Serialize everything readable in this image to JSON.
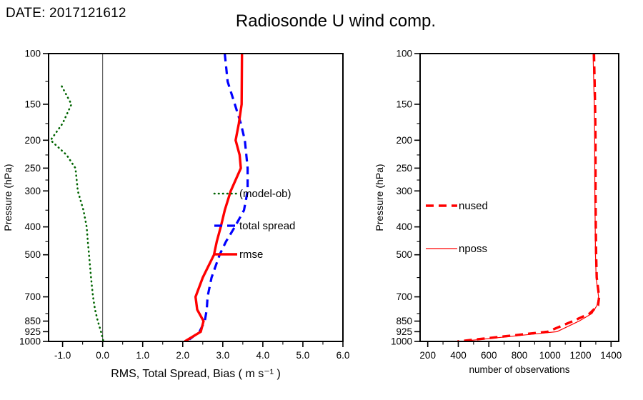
{
  "header": {
    "date_label": "DATE: 2017121612",
    "title": "Radiosonde U wind comp."
  },
  "chart_data": [
    {
      "type": "line",
      "panel": "verification",
      "xlabel": "RMS, Total Spread, Bias ( m s⁻¹ )",
      "ylabel": "Pressure (hPa)",
      "xlim": [
        -1.35,
        6.0
      ],
      "ylim": [
        100,
        1000
      ],
      "yscale": "log",
      "y_inverted": true,
      "grid": false,
      "refline_x": 0.0,
      "xticks": [
        -1.0,
        0.0,
        1.0,
        2.0,
        3.0,
        4.0,
        5.0,
        6.0
      ],
      "xtick_labels": [
        "-1.0",
        "0.0",
        "1.0",
        "2.0",
        "3.0",
        "4.0",
        "5.0",
        "6.0"
      ],
      "xminor": [
        -0.5,
        0.5,
        1.5,
        2.5,
        3.5,
        4.5,
        5.5
      ],
      "yticks": [
        100,
        150,
        200,
        250,
        300,
        400,
        500,
        700,
        850,
        925,
        1000
      ],
      "ytick_labels": [
        "100",
        "150",
        "200",
        "250",
        "300",
        "400",
        "500",
        "700",
        "850",
        "925",
        "1000"
      ],
      "yminor": [
        125,
        175,
        225,
        275,
        350,
        450,
        600,
        800
      ],
      "legend_position": "inside-right",
      "series": [
        {
          "name": "(model-ob)",
          "color": "#006400",
          "style": "dotted",
          "width": 2.6,
          "points": [
            [
              130,
              -1.02
            ],
            [
              150,
              -0.78
            ],
            [
              175,
              -1.0
            ],
            [
              200,
              -1.3
            ],
            [
              225,
              -0.9
            ],
            [
              250,
              -0.68
            ],
            [
              300,
              -0.62
            ],
            [
              350,
              -0.48
            ],
            [
              400,
              -0.4
            ],
            [
              450,
              -0.37
            ],
            [
              500,
              -0.34
            ],
            [
              600,
              -0.29
            ],
            [
              700,
              -0.24
            ],
            [
              775,
              -0.19
            ],
            [
              850,
              -0.12
            ],
            [
              925,
              -0.04
            ],
            [
              1000,
              0.02
            ]
          ]
        },
        {
          "name": "total spread",
          "color": "#0000ff",
          "style": "dashed",
          "width": 3.2,
          "points": [
            [
              100,
              3.05
            ],
            [
              125,
              3.12
            ],
            [
              150,
              3.3
            ],
            [
              175,
              3.45
            ],
            [
              200,
              3.55
            ],
            [
              250,
              3.62
            ],
            [
              300,
              3.62
            ],
            [
              350,
              3.53
            ],
            [
              400,
              3.3
            ],
            [
              450,
              3.08
            ],
            [
              500,
              2.92
            ],
            [
              600,
              2.72
            ],
            [
              700,
              2.62
            ],
            [
              775,
              2.6
            ],
            [
              850,
              2.55
            ],
            [
              925,
              2.42
            ],
            [
              1000,
              2.1
            ]
          ]
        },
        {
          "name": "rmse",
          "color": "#ff0000",
          "style": "solid",
          "width": 3.4,
          "points": [
            [
              100,
              3.48
            ],
            [
              150,
              3.47
            ],
            [
              175,
              3.4
            ],
            [
              200,
              3.32
            ],
            [
              225,
              3.42
            ],
            [
              250,
              3.45
            ],
            [
              300,
              3.2
            ],
            [
              350,
              3.05
            ],
            [
              400,
              2.95
            ],
            [
              450,
              2.85
            ],
            [
              500,
              2.78
            ],
            [
              600,
              2.5
            ],
            [
              700,
              2.32
            ],
            [
              775,
              2.36
            ],
            [
              850,
              2.52
            ],
            [
              925,
              2.45
            ],
            [
              1000,
              2.05
            ]
          ]
        }
      ]
    },
    {
      "type": "line",
      "panel": "observations",
      "xlabel": "number of observations",
      "ylabel": "Pressure (hPa)",
      "xlim": [
        150,
        1450
      ],
      "ylim": [
        100,
        1000
      ],
      "yscale": "log",
      "y_inverted": true,
      "grid": false,
      "xticks": [
        200,
        400,
        600,
        800,
        1000,
        1200,
        1400
      ],
      "xtick_labels": [
        "200",
        "400",
        "600",
        "800",
        "1000",
        "1200",
        "1400"
      ],
      "xminor": [
        300,
        500,
        700,
        900,
        1100,
        1300
      ],
      "yticks": [
        100,
        150,
        200,
        250,
        300,
        400,
        500,
        700,
        850,
        925,
        1000
      ],
      "ytick_labels": [
        "100",
        "150",
        "200",
        "250",
        "300",
        "400",
        "500",
        "700",
        "850",
        "925",
        "1000"
      ],
      "yminor": [
        125,
        175,
        225,
        275,
        350,
        450,
        600,
        800
      ],
      "legend_position": "inside-left",
      "series": [
        {
          "name": "nused",
          "color": "#ff0000",
          "style": "dashed",
          "width": 3.4,
          "points": [
            [
              100,
              1288
            ],
            [
              150,
              1295
            ],
            [
              200,
              1298
            ],
            [
              300,
              1298
            ],
            [
              400,
              1300
            ],
            [
              500,
              1302
            ],
            [
              600,
              1306
            ],
            [
              700,
              1322
            ],
            [
              750,
              1315
            ],
            [
              800,
              1260
            ],
            [
              850,
              1150
            ],
            [
              925,
              985
            ],
            [
              1000,
              395
            ]
          ]
        },
        {
          "name": "nposs",
          "color": "#ff0000",
          "style": "solid",
          "width": 1.2,
          "points": [
            [
              100,
              1282
            ],
            [
              150,
              1290
            ],
            [
              200,
              1293
            ],
            [
              300,
              1294
            ],
            [
              400,
              1296
            ],
            [
              500,
              1298
            ],
            [
              600,
              1302
            ],
            [
              700,
              1318
            ],
            [
              750,
              1308
            ],
            [
              800,
              1275
            ],
            [
              850,
              1190
            ],
            [
              925,
              1045
            ],
            [
              1000,
              415
            ]
          ]
        }
      ]
    }
  ]
}
